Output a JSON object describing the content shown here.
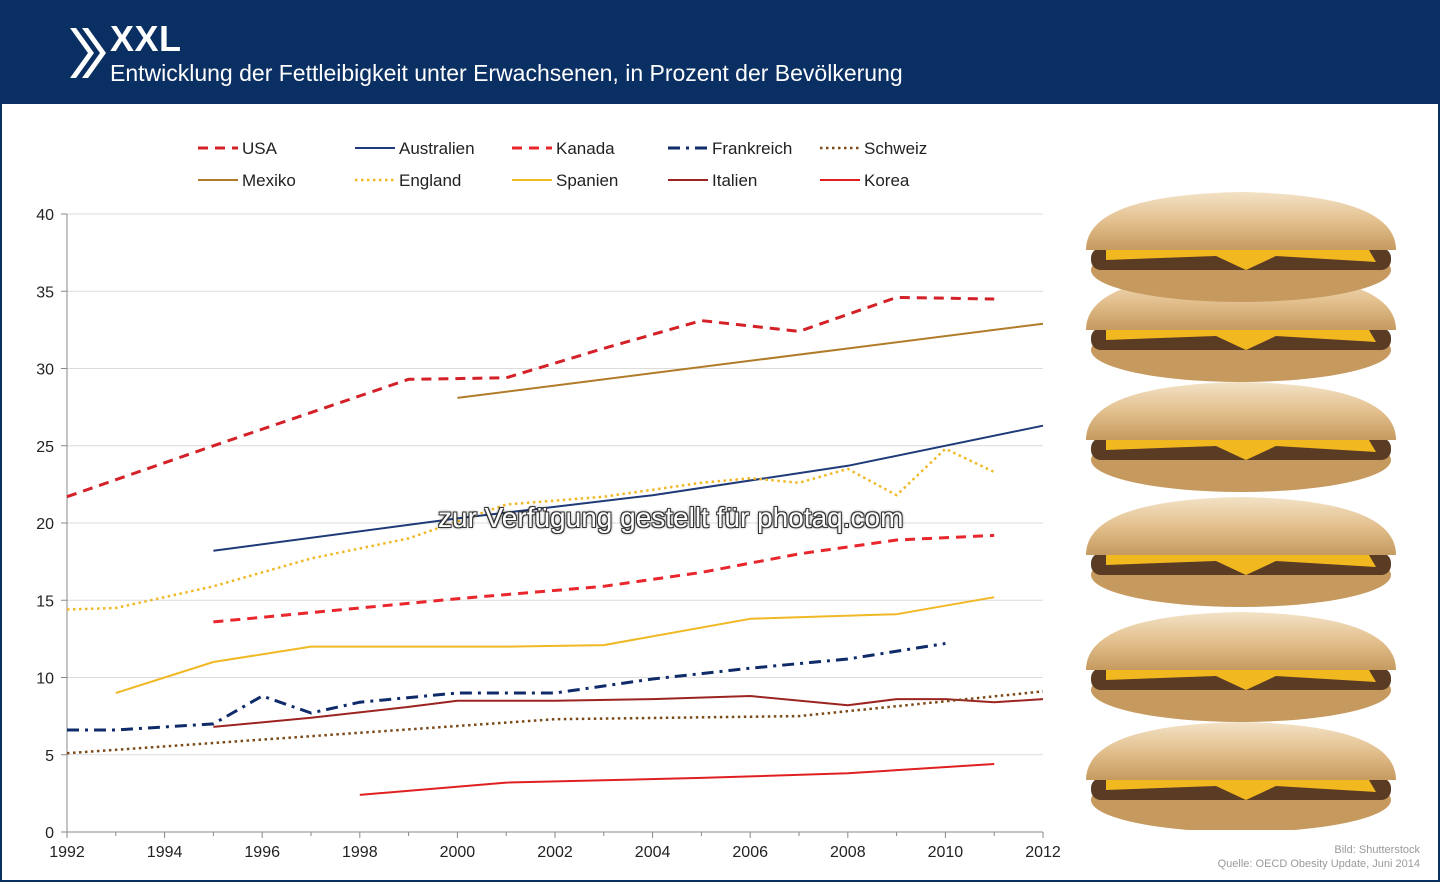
{
  "header": {
    "title": "XXL",
    "subtitle": "Entwicklung der Fettleibigkeit unter Erwachsenen, in Prozent der Bevölkerung"
  },
  "watermark": "zur Verfügung gestellt für photaq.com",
  "credits": {
    "image": "Bild: Shutterstock",
    "source": "Quelle: OECD Obesity Update, Juni 2014"
  },
  "chart_data": {
    "type": "line",
    "title": "",
    "xlabel": "",
    "ylabel": "",
    "xlim": [
      1992,
      2012
    ],
    "ylim": [
      0,
      40
    ],
    "x_ticks": [
      "1992",
      "1994",
      "1996",
      "1998",
      "2000",
      "2002",
      "2004",
      "2006",
      "2008",
      "2010",
      "2012"
    ],
    "y_ticks": [
      "0",
      "5",
      "10",
      "15",
      "20",
      "25",
      "30",
      "35",
      "40"
    ],
    "grid": "horizontal",
    "legend_position": "top",
    "series": [
      {
        "name": "USA",
        "color": "#d42027",
        "style": "dashed",
        "points": [
          [
            1992,
            21.7
          ],
          [
            1995,
            25
          ],
          [
            1999,
            29.3
          ],
          [
            2001,
            29.4
          ],
          [
            2003,
            31.3
          ],
          [
            2005,
            33.1
          ],
          [
            2007,
            32.4
          ],
          [
            2009,
            34.6
          ],
          [
            2011,
            34.5
          ]
        ]
      },
      {
        "name": "Mexiko",
        "color": "#b07c2a",
        "style": "solid",
        "points": [
          [
            2000,
            28.1
          ],
          [
            2012,
            32.9
          ]
        ]
      },
      {
        "name": "Australien",
        "color": "#1f3a78",
        "style": "solid",
        "points": [
          [
            1995,
            18.2
          ],
          [
            2000,
            20.3
          ],
          [
            2004,
            21.8
          ],
          [
            2008,
            23.7
          ],
          [
            2012,
            26.3
          ]
        ]
      },
      {
        "name": "England",
        "color": "#f0b825",
        "style": "dotted",
        "points": [
          [
            1992,
            14.4
          ],
          [
            1993,
            14.5
          ],
          [
            1995,
            15.9
          ],
          [
            1997,
            17.7
          ],
          [
            1999,
            19
          ],
          [
            2001,
            21.2
          ],
          [
            2003,
            21.7
          ],
          [
            2005,
            22.6
          ],
          [
            2006,
            22.9
          ],
          [
            2007,
            22.6
          ],
          [
            2008,
            23.5
          ],
          [
            2009,
            21.8
          ],
          [
            2010,
            24.8
          ],
          [
            2011,
            23.3
          ]
        ]
      },
      {
        "name": "Kanada",
        "color": "#e8262c",
        "style": "dashed",
        "points": [
          [
            1995,
            13.6
          ],
          [
            2000,
            15.1
          ],
          [
            2003,
            15.9
          ],
          [
            2005,
            16.8
          ],
          [
            2007,
            18
          ],
          [
            2009,
            18.9
          ],
          [
            2011,
            19.2
          ]
        ]
      },
      {
        "name": "Spanien",
        "color": "#f0b825",
        "style": "solid",
        "points": [
          [
            1993,
            9
          ],
          [
            1995,
            11
          ],
          [
            1997,
            12
          ],
          [
            2001,
            12
          ],
          [
            2003,
            12.1
          ],
          [
            2006,
            13.8
          ],
          [
            2009,
            14.1
          ],
          [
            2011,
            15.2
          ]
        ]
      },
      {
        "name": "Frankreich",
        "color": "#102b6a",
        "style": "dashdot",
        "points": [
          [
            1992,
            6.6
          ],
          [
            1993,
            6.6
          ],
          [
            1995,
            7
          ],
          [
            1996,
            8.8
          ],
          [
            1997,
            7.7
          ],
          [
            1998,
            8.4
          ],
          [
            2000,
            9
          ],
          [
            2002,
            9
          ],
          [
            2004,
            9.9
          ],
          [
            2006,
            10.6
          ],
          [
            2008,
            11.2
          ],
          [
            2010,
            12.2
          ]
        ]
      },
      {
        "name": "Italien",
        "color": "#9c2420",
        "style": "solid",
        "points": [
          [
            1995,
            6.8
          ],
          [
            1997,
            7.4
          ],
          [
            1999,
            8.1
          ],
          [
            2000,
            8.5
          ],
          [
            2002,
            8.5
          ],
          [
            2004,
            8.6
          ],
          [
            2006,
            8.8
          ],
          [
            2008,
            8.2
          ],
          [
            2009,
            8.6
          ],
          [
            2010,
            8.6
          ],
          [
            2011,
            8.4
          ],
          [
            2012,
            8.6
          ]
        ]
      },
      {
        "name": "Schweiz",
        "color": "#7a4a18",
        "style": "dotted",
        "points": [
          [
            1992,
            5.1
          ],
          [
            1997,
            6.2
          ],
          [
            2002,
            7.3
          ],
          [
            2007,
            7.5
          ],
          [
            2012,
            9.1
          ]
        ]
      },
      {
        "name": "Korea",
        "color": "#e02020",
        "style": "solid",
        "points": [
          [
            1998,
            2.4
          ],
          [
            2001,
            3.2
          ],
          [
            2005,
            3.5
          ],
          [
            2008,
            3.8
          ],
          [
            2011,
            4.4
          ]
        ]
      }
    ]
  }
}
